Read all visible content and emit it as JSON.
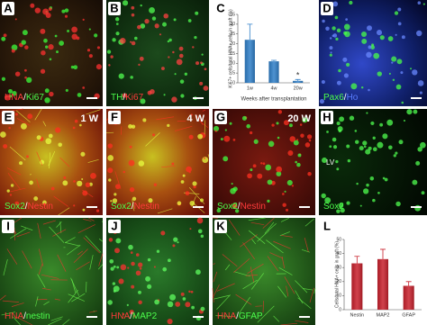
{
  "panels": [
    {
      "letter": "A",
      "bg": "a",
      "caption": [
        {
          "text": "HNA",
          "color": "#ff3b3b"
        },
        {
          "text": "/",
          "color": "#ffffff"
        },
        {
          "text": "Ki67",
          "color": "#4cff4c"
        }
      ]
    },
    {
      "letter": "B",
      "bg": "b",
      "caption": [
        {
          "text": "TH",
          "color": "#4cff4c"
        },
        {
          "text": "/",
          "color": "#ffffff"
        },
        {
          "text": "Ki67",
          "color": "#ff3b3b"
        }
      ]
    },
    {
      "letter": "C",
      "bg": "chart"
    },
    {
      "letter": "D",
      "bg": "d",
      "caption": [
        {
          "text": "Pax6",
          "color": "#4cff4c"
        },
        {
          "text": "/",
          "color": "#ffffff"
        },
        {
          "text": "Ho",
          "color": "#5a7dff"
        }
      ]
    },
    {
      "letter": "E",
      "bg": "e",
      "tag": "1 W",
      "caption": [
        {
          "text": "Sox2",
          "color": "#4cff4c"
        },
        {
          "text": "/",
          "color": "#ffffff"
        },
        {
          "text": "Nestin",
          "color": "#ff3b3b"
        }
      ]
    },
    {
      "letter": "F",
      "bg": "e",
      "tag": "4 W",
      "caption": [
        {
          "text": "Sox2",
          "color": "#4cff4c"
        },
        {
          "text": "/",
          "color": "#ffffff"
        },
        {
          "text": "Nestin",
          "color": "#ff3b3b"
        }
      ]
    },
    {
      "letter": "G",
      "bg": "g",
      "tag": "20 W",
      "caption": [
        {
          "text": "Sox2",
          "color": "#4cff4c"
        },
        {
          "text": "/",
          "color": "#ffffff"
        },
        {
          "text": "Nestin",
          "color": "#ff3b3b"
        }
      ]
    },
    {
      "letter": "H",
      "bg": "h",
      "note": "LV",
      "caption": [
        {
          "text": "Sox2",
          "color": "#4cff4c"
        }
      ]
    },
    {
      "letter": "I",
      "bg": "i",
      "caption": [
        {
          "text": "HNA",
          "color": "#ff3b3b"
        },
        {
          "text": "/",
          "color": "#ffffff"
        },
        {
          "text": "nestin",
          "color": "#4cff4c"
        }
      ]
    },
    {
      "letter": "J",
      "bg": "j",
      "caption": [
        {
          "text": "HNA",
          "color": "#ff3b3b"
        },
        {
          "text": "/",
          "color": "#ffffff"
        },
        {
          "text": "MAP2",
          "color": "#4cff4c"
        }
      ]
    },
    {
      "letter": "K",
      "bg": "i",
      "caption": [
        {
          "text": "HNA",
          "color": "#ff3b3b"
        },
        {
          "text": "/",
          "color": "#ffffff"
        },
        {
          "text": "GFAP",
          "color": "#4cff4c"
        }
      ]
    },
    {
      "letter": "L",
      "bg": "chart"
    }
  ],
  "chart_data": [
    {
      "type": "bar",
      "ylabel": "Ki67+ cells/total HNA+ cells in graft (%)",
      "xlabel": "Weeks after transplantation",
      "categories": [
        "1w",
        "4w",
        "20w"
      ],
      "values": [
        22,
        11,
        1
      ],
      "errors": [
        8,
        0.5,
        0.7
      ],
      "color": "#2f7fc8",
      "ylim": [
        0,
        35
      ],
      "yticks": [
        0,
        5,
        10,
        15,
        20,
        25,
        30,
        35
      ],
      "annotation": "*"
    },
    {
      "type": "bar",
      "ylabel": "Cells/total HNA+ cells in graft (%)",
      "categories": [
        "Nestin",
        "MAP2",
        "GFAP"
      ],
      "values": [
        33,
        36,
        17
      ],
      "errors": [
        5,
        7,
        3
      ],
      "color": "#c8202c",
      "ylim": [
        0,
        50
      ],
      "yticks": [
        0,
        10,
        20,
        30,
        40,
        50
      ]
    }
  ]
}
